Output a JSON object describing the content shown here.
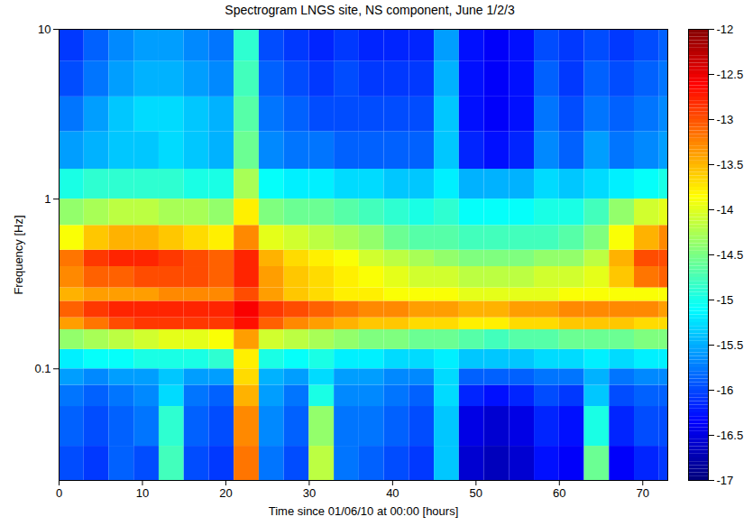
{
  "chart_data": {
    "type": "heatmap",
    "title": "Spectrogram LNGS site, NS component, June 1/2/3",
    "xlabel": "Time since 01/06/10 at 00:00 [hours]",
    "ylabel": "Frequency [Hz]",
    "log": "y",
    "grid": false,
    "xlim": [
      0,
      73
    ],
    "xticks": [
      0,
      10,
      20,
      30,
      40,
      50,
      60,
      70
    ],
    "ylim": [
      0.022,
      10
    ],
    "yticks": [
      0.1,
      1,
      10
    ],
    "time_edges": [
      0,
      3,
      6,
      9,
      12,
      15,
      18,
      21,
      24,
      27,
      30,
      33,
      36,
      39,
      42,
      45,
      48,
      51,
      54,
      57,
      60,
      63,
      66,
      69,
      72,
      73
    ],
    "frequency_edges": [
      0.022,
      0.035,
      0.06,
      0.08,
      0.1,
      0.13,
      0.17,
      0.2,
      0.25,
      0.3,
      0.4,
      0.5,
      0.7,
      1,
      1.5,
      2.5,
      4,
      6.5,
      10
    ],
    "cells": [
      [
        -16.0,
        -16.1,
        -15.9,
        -16.0,
        -14.8,
        -16.0,
        -16.1,
        -13.2,
        -15.8,
        -16.0,
        -14.2,
        -15.8,
        -15.9,
        -16.0,
        -16.1,
        -15.4,
        -16.6,
        -16.7,
        -16.6,
        -16.3,
        -16.4,
        -14.6,
        -16.4,
        -16.2,
        -16.1
      ],
      [
        -15.9,
        -16.0,
        -15.9,
        -15.8,
        -14.9,
        -15.9,
        -16.0,
        -13.3,
        -15.7,
        -15.9,
        -14.4,
        -15.8,
        -15.8,
        -15.9,
        -16.0,
        -15.4,
        -16.5,
        -16.6,
        -16.5,
        -16.2,
        -16.3,
        -15.0,
        -16.2,
        -16.0,
        -16.0
      ],
      [
        -15.8,
        -15.9,
        -15.8,
        -15.7,
        -15.3,
        -15.8,
        -15.9,
        -13.5,
        -15.6,
        -15.8,
        -15.0,
        -15.7,
        -15.7,
        -15.8,
        -15.9,
        -15.3,
        -16.2,
        -16.3,
        -16.2,
        -16.0,
        -16.1,
        -15.4,
        -16.0,
        -15.9,
        -15.9
      ],
      [
        -15.6,
        -15.7,
        -15.6,
        -15.6,
        -15.4,
        -15.6,
        -15.6,
        -13.7,
        -15.5,
        -15.6,
        -15.3,
        -15.6,
        -15.6,
        -15.7,
        -15.7,
        -15.3,
        -15.9,
        -15.9,
        -15.9,
        -15.8,
        -15.8,
        -15.5,
        -15.8,
        -15.7,
        -15.7
      ],
      [
        -15.2,
        -15.1,
        -15.1,
        -15.0,
        -15.0,
        -15.0,
        -14.9,
        -13.8,
        -15.0,
        -15.1,
        -15.0,
        -15.2,
        -15.2,
        -15.3,
        -15.3,
        -15.2,
        -15.4,
        -15.4,
        -15.4,
        -15.3,
        -15.3,
        -15.2,
        -15.3,
        -15.2,
        -15.2
      ],
      [
        -14.4,
        -14.3,
        -14.2,
        -14.1,
        -14.0,
        -14.0,
        -13.9,
        -13.4,
        -14.1,
        -14.2,
        -14.3,
        -14.4,
        -14.5,
        -14.5,
        -14.6,
        -14.6,
        -14.7,
        -14.8,
        -14.7,
        -14.7,
        -14.6,
        -14.6,
        -14.6,
        -14.5,
        -14.5
      ],
      [
        -13.4,
        -13.2,
        -13.0,
        -12.9,
        -12.9,
        -12.9,
        -12.9,
        -12.7,
        -13.1,
        -13.3,
        -13.4,
        -13.5,
        -13.6,
        -13.6,
        -13.7,
        -13.7,
        -13.8,
        -13.8,
        -13.7,
        -13.7,
        -13.6,
        -13.6,
        -13.6,
        -13.7,
        -13.7
      ],
      [
        -13.1,
        -12.9,
        -12.8,
        -12.8,
        -12.8,
        -12.8,
        -12.8,
        -12.6,
        -12.9,
        -13.0,
        -13.1,
        -13.2,
        -13.3,
        -13.3,
        -13.4,
        -13.4,
        -13.5,
        -13.5,
        -13.4,
        -13.4,
        -13.3,
        -13.3,
        -13.3,
        -13.3,
        -13.4
      ],
      [
        -13.5,
        -13.4,
        -13.4,
        -13.4,
        -13.3,
        -13.3,
        -13.3,
        -13.0,
        -13.4,
        -13.6,
        -13.7,
        -13.8,
        -13.8,
        -13.9,
        -13.9,
        -13.9,
        -14.0,
        -14.0,
        -14.0,
        -14.0,
        -13.9,
        -13.9,
        -13.9,
        -13.9,
        -13.9
      ],
      [
        -13.3,
        -13.1,
        -13.1,
        -13.0,
        -13.0,
        -13.0,
        -13.1,
        -12.8,
        -13.4,
        -13.6,
        -13.7,
        -13.8,
        -13.9,
        -14.0,
        -14.1,
        -14.1,
        -14.2,
        -14.2,
        -14.2,
        -14.1,
        -14.1,
        -14.0,
        -13.6,
        -13.2,
        -13.1
      ],
      [
        -13.2,
        -12.9,
        -12.8,
        -12.8,
        -12.9,
        -13.0,
        -13.1,
        -12.8,
        -13.5,
        -13.7,
        -13.8,
        -13.9,
        -14.1,
        -14.2,
        -14.3,
        -14.4,
        -14.5,
        -14.5,
        -14.5,
        -14.4,
        -14.4,
        -14.2,
        -13.5,
        -13.0,
        -13.0
      ],
      [
        -13.9,
        -13.6,
        -13.5,
        -13.5,
        -13.6,
        -13.7,
        -13.8,
        -13.3,
        -14.0,
        -14.1,
        -14.2,
        -14.3,
        -14.4,
        -14.6,
        -14.7,
        -14.7,
        -14.8,
        -14.8,
        -14.8,
        -14.8,
        -14.7,
        -14.5,
        -13.9,
        -13.5,
        -13.3
      ],
      [
        -14.4,
        -14.3,
        -14.2,
        -14.2,
        -14.3,
        -14.3,
        -14.4,
        -13.8,
        -14.5,
        -14.6,
        -14.6,
        -14.7,
        -14.8,
        -14.9,
        -15.0,
        -14.9,
        -15.1,
        -15.1,
        -15.1,
        -15.0,
        -15.0,
        -14.8,
        -14.4,
        -14.1,
        -14.0
      ],
      [
        -15.0,
        -14.9,
        -14.9,
        -14.9,
        -14.9,
        -15.0,
        -15.0,
        -14.3,
        -15.1,
        -15.2,
        -15.2,
        -15.3,
        -15.3,
        -15.4,
        -15.4,
        -15.2,
        -15.5,
        -15.5,
        -15.5,
        -15.3,
        -15.4,
        -15.3,
        -15.2,
        -15.1,
        -15.0
      ],
      [
        -15.6,
        -15.5,
        -15.4,
        -15.4,
        -15.3,
        -15.4,
        -15.5,
        -14.6,
        -15.7,
        -15.8,
        -15.8,
        -15.9,
        -15.9,
        -15.9,
        -15.9,
        -15.4,
        -16.2,
        -16.3,
        -16.2,
        -15.7,
        -15.9,
        -15.6,
        -15.8,
        -15.7,
        -15.6
      ],
      [
        -15.8,
        -15.6,
        -15.4,
        -15.3,
        -15.3,
        -15.4,
        -15.5,
        -14.7,
        -15.8,
        -15.9,
        -16.0,
        -16.0,
        -16.0,
        -16.0,
        -16.0,
        -15.4,
        -16.3,
        -16.4,
        -16.3,
        -15.8,
        -16.0,
        -15.8,
        -15.9,
        -15.8,
        -15.7
      ],
      [
        -16.0,
        -15.8,
        -15.6,
        -15.5,
        -15.5,
        -15.6,
        -15.7,
        -14.8,
        -15.9,
        -16.0,
        -16.1,
        -16.0,
        -16.1,
        -16.1,
        -16.1,
        -15.5,
        -16.3,
        -16.4,
        -16.3,
        -15.9,
        -16.1,
        -15.9,
        -16.0,
        -15.9,
        -15.8
      ],
      [
        -16.1,
        -15.9,
        -15.7,
        -15.6,
        -15.6,
        -15.7,
        -15.8,
        -14.9,
        -16.0,
        -16.1,
        -16.2,
        -16.1,
        -16.2,
        -16.2,
        -16.2,
        -15.6,
        -16.3,
        -16.4,
        -16.3,
        -16.0,
        -16.1,
        -16.0,
        -16.1,
        -16.0,
        -15.9
      ]
    ],
    "colorbar": {
      "range": [
        -17,
        -12
      ],
      "ticks": [
        -17,
        -16.5,
        -16,
        -15.5,
        -15,
        -14.5,
        -14,
        -13.5,
        -13,
        -12.5,
        -12
      ]
    }
  }
}
